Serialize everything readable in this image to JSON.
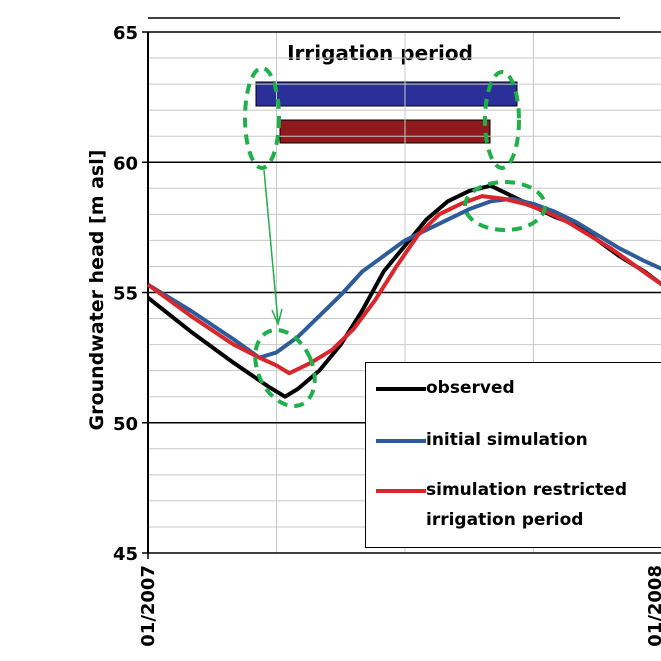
{
  "chart_data": {
    "type": "line",
    "annotation": "Irrigation period",
    "ylabel": "Groundwater head [m asl]",
    "xlim": [
      0,
      12
    ],
    "xticks": [
      {
        "value": 0,
        "label": "01/2007"
      },
      {
        "value": 12,
        "label": "01/2008"
      }
    ],
    "ylim": [
      45,
      65
    ],
    "yticks": [
      45,
      50,
      55,
      60,
      65
    ],
    "grid": true,
    "series": [
      {
        "name": "observed",
        "color": "#000000",
        "x": [
          0,
          1,
          2,
          2.8,
          3.2,
          3.5,
          4,
          4.5,
          5,
          5.5,
          6,
          6.5,
          7,
          7.5,
          8,
          8.5,
          9,
          9.5,
          10,
          10.5,
          11,
          11.6,
          12
        ],
        "values": [
          54.8,
          53.5,
          52.3,
          51.4,
          51.0,
          51.3,
          52.0,
          53.0,
          54.3,
          55.8,
          56.8,
          57.8,
          58.5,
          58.9,
          59.1,
          58.7,
          58.3,
          57.9,
          57.6,
          57.0,
          56.4,
          55.8,
          55.3
        ]
      },
      {
        "name": "initial simulation",
        "color": "#2e5c9a",
        "x": [
          0,
          1,
          2,
          2.6,
          3,
          3.5,
          4,
          4.5,
          5,
          5.5,
          6,
          6.5,
          7,
          7.5,
          8,
          8.5,
          9,
          9.5,
          10,
          10.5,
          11,
          11.6,
          12
        ],
        "values": [
          55.3,
          54.3,
          53.2,
          52.5,
          52.7,
          53.3,
          54.1,
          54.9,
          55.8,
          56.4,
          57.0,
          57.4,
          57.8,
          58.2,
          58.5,
          58.6,
          58.4,
          58.1,
          57.7,
          57.2,
          56.7,
          56.2,
          55.9
        ]
      },
      {
        "name": "simulation restricted irrigation period",
        "color": "#d9262b",
        "x": [
          0,
          1,
          2,
          2.6,
          3,
          3.3,
          3.8,
          4.3,
          4.8,
          5.3,
          5.8,
          6.3,
          6.8,
          7.3,
          7.8,
          8.3,
          8.8,
          9.3,
          9.8,
          10.3,
          10.8,
          11.4,
          12
        ],
        "values": [
          55.3,
          54.1,
          53.0,
          52.5,
          52.2,
          51.9,
          52.3,
          52.8,
          53.6,
          54.7,
          56.0,
          57.2,
          58.0,
          58.4,
          58.7,
          58.6,
          58.4,
          58.1,
          57.7,
          57.2,
          56.7,
          56.0,
          55.3
        ]
      }
    ]
  }
}
